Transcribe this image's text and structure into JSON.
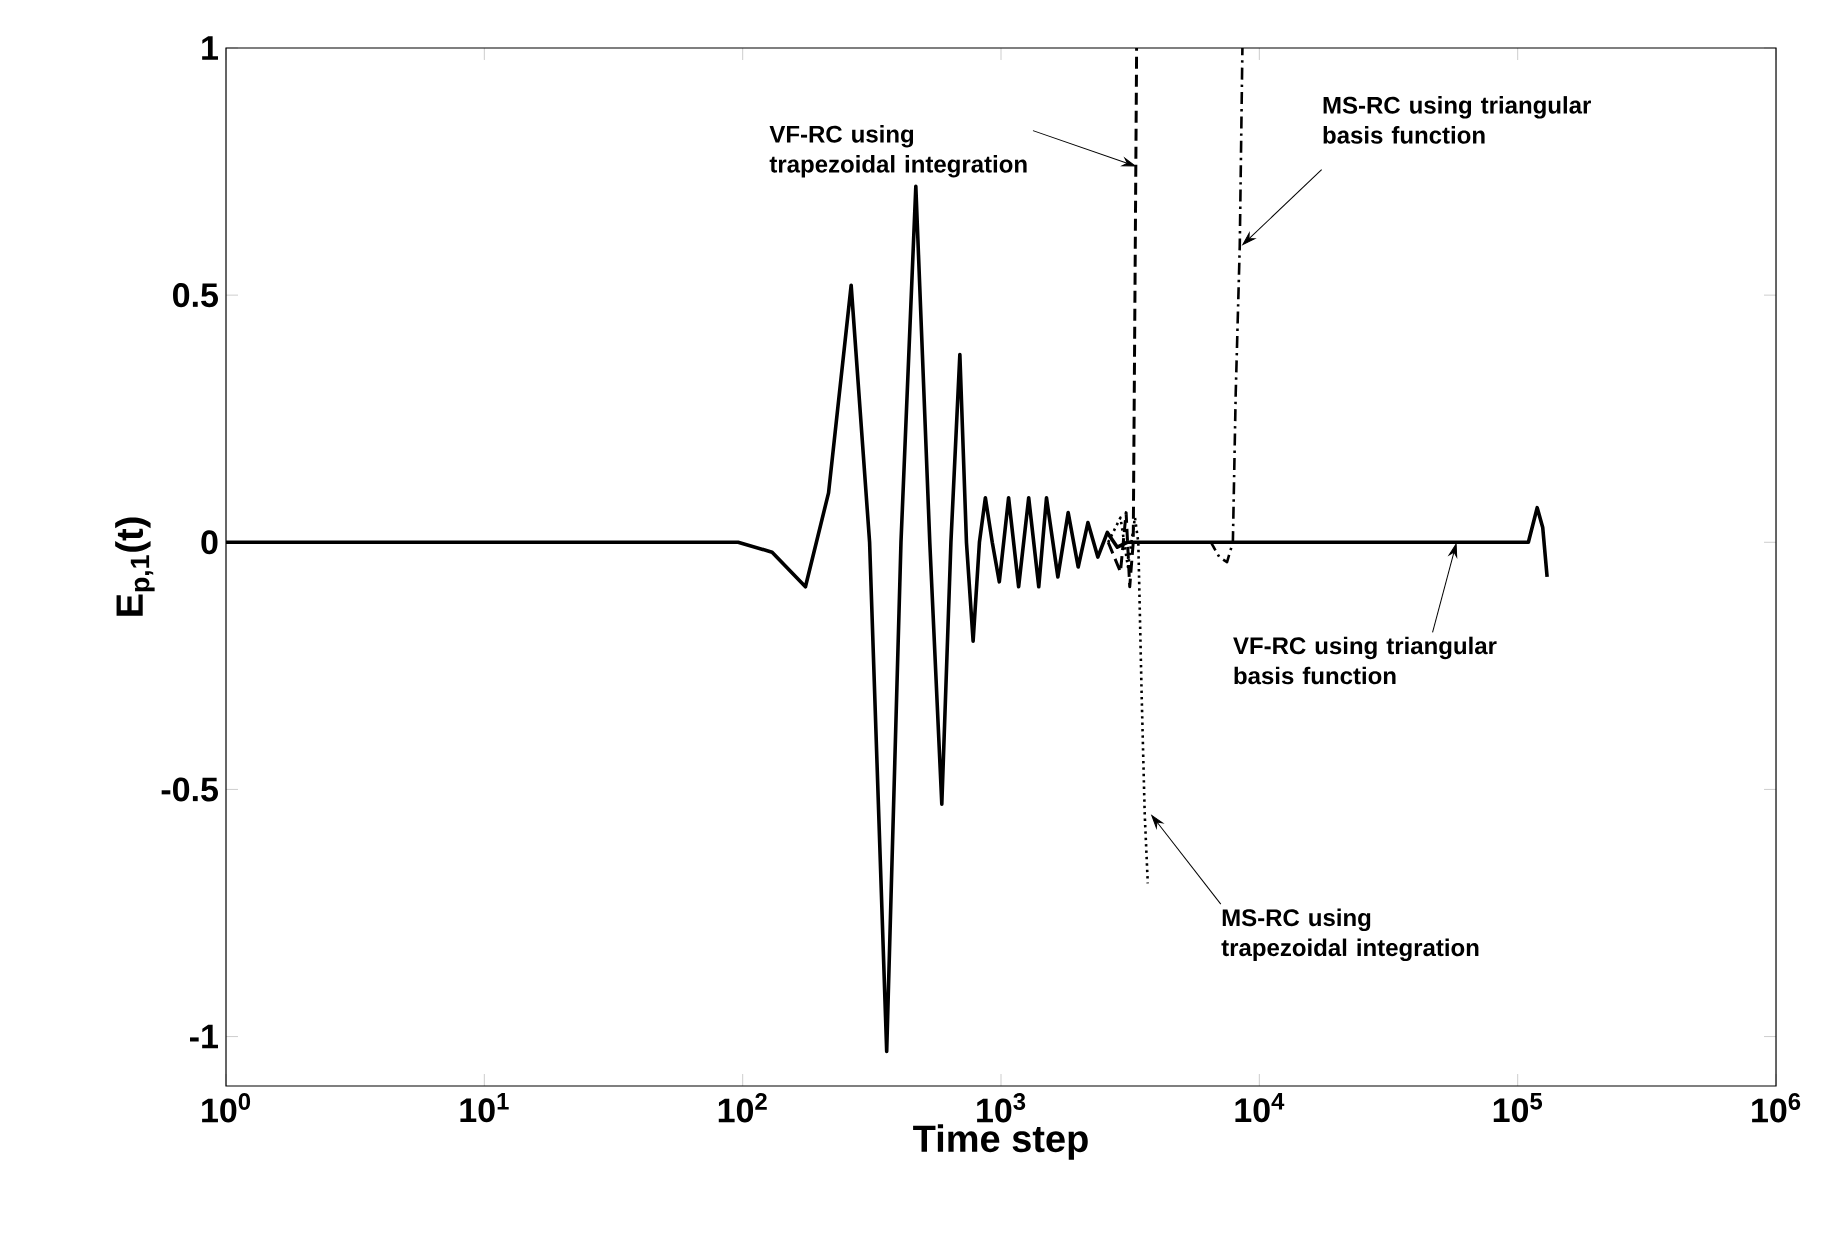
{
  "chart_data": {
    "type": "line",
    "xlabel": "Time step",
    "ylabel": "E$_{p,1}$(t)",
    "log": "x",
    "xlim": [
      1,
      1000000
    ],
    "ylim": [
      -1.1,
      1
    ],
    "xticks": [
      {
        "value": 1,
        "label": "10$^{0}$"
      },
      {
        "value": 10,
        "label": "10$^{1}$"
      },
      {
        "value": 100,
        "label": "10$^{2}$"
      },
      {
        "value": 1000,
        "label": "10$^{3}$"
      },
      {
        "value": 10000,
        "label": "10$^{4}$"
      },
      {
        "value": 100000,
        "label": "10$^{5}$"
      },
      {
        "value": 1000000,
        "label": "10$^{6}$"
      }
    ],
    "yticks": [
      -1,
      -0.5,
      0,
      0.5,
      1
    ],
    "grid": false,
    "series": [
      {
        "color": "#000000",
        "line_style": "solid",
        "x": [
          1,
          96,
          130,
          175,
          215,
          263,
          310,
          361,
          410,
          468,
          530,
          590,
          640,
          693,
          735,
          780,
          825,
          870,
          925,
          985,
          1070,
          1170,
          1280,
          1400,
          1500,
          1660,
          1820,
          1990,
          2170,
          2370,
          2580,
          2820,
          3080,
          110000,
          119000,
          125000,
          130000
        ],
        "values": [
          0,
          0,
          -0.02,
          -0.09,
          0.1,
          0.52,
          0,
          -1.03,
          0,
          0.72,
          0,
          -0.53,
          0,
          0.38,
          0,
          -0.2,
          0,
          0.09,
          0,
          -0.08,
          0.09,
          -0.09,
          0.09,
          -0.09,
          0.09,
          -0.07,
          0.06,
          -0.05,
          0.04,
          -0.03,
          0.02,
          -0.01,
          0,
          0,
          0.07,
          0.03,
          -0.07
        ]
      },
      {
        "color": "#000000",
        "line_style": "dashed",
        "x": [
          2600,
          2900,
          3050,
          3150,
          3250,
          3300,
          3350
        ],
        "values": [
          0,
          -0.06,
          0.06,
          -0.09,
          0,
          0.5,
          1
        ]
      },
      {
        "color": "#000000",
        "line_style": "dashdot",
        "x": [
          3300,
          6500,
          7000,
          7500,
          7900,
          8100,
          8400,
          8600
        ],
        "values": [
          0,
          0,
          -0.03,
          -0.04,
          0,
          0.3,
          0.6,
          1
        ]
      },
      {
        "color": "#000000",
        "line_style": "dotted",
        "x": [
          2600,
          2900,
          3100,
          3300,
          3400,
          3500,
          3600,
          3700
        ],
        "values": [
          0,
          0.05,
          -0.05,
          0.05,
          0,
          -0.3,
          -0.55,
          -0.69
        ]
      }
    ],
    "annotations": [
      {
        "text": "VF-RC using trapezoidal integration",
        "x": 3360,
        "y": 0.76
      },
      {
        "text": "MS-RC using triangular basis function",
        "x": 8540,
        "y": 0.6
      },
      {
        "text": "VF-RC using triangular basis function",
        "x": 58000,
        "y": 0
      },
      {
        "text": "MS-RC using trapezoidal integration",
        "x": 3800,
        "y": -0.55
      }
    ]
  }
}
